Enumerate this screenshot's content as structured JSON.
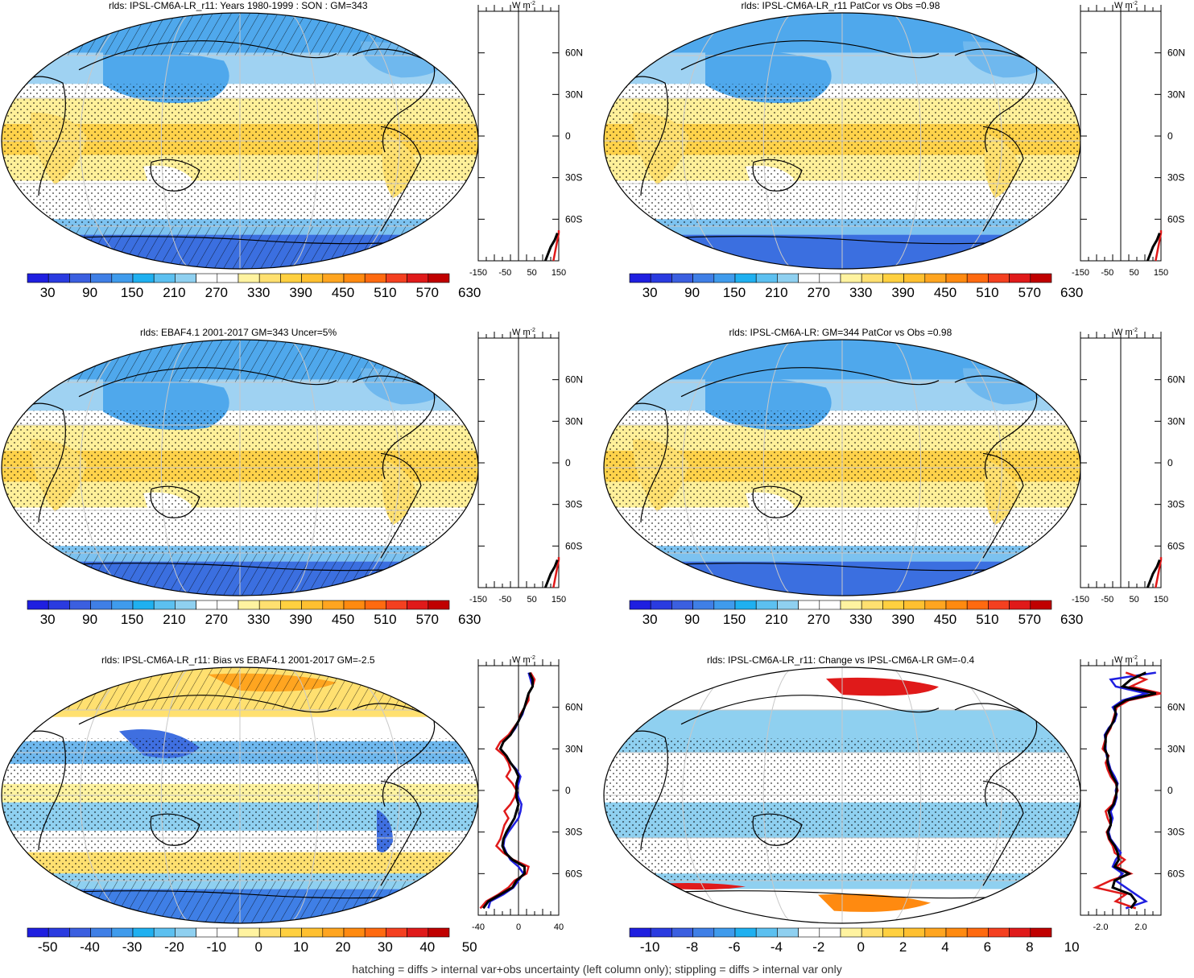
{
  "footer": "hatching = diffs > internal var+obs uncertainty (left column only); stippling = diffs > internal var only",
  "panels": [
    {
      "title": "rlds: IPSL-CM6A-LR_r11: Years 1980-1999 : SON : GM=343",
      "kind": "abs",
      "hatch": true
    },
    {
      "title": "rlds: IPSL-CM6A-LR_r11 PatCor vs Obs =0.98",
      "kind": "abs",
      "hatch": false
    },
    {
      "title": "rlds: EBAF4.1 2001-2017 GM=343 Uncer=5%",
      "kind": "abs",
      "hatch": true
    },
    {
      "title": "rlds: IPSL-CM6A-LR: GM=344 PatCor vs Obs =0.98",
      "kind": "abs",
      "hatch": false
    },
    {
      "title": "rlds: IPSL-CM6A-LR_r11: Bias vs EBAF4.1 2001-2017  GM=-2.5",
      "kind": "bias",
      "hatch": true
    },
    {
      "title": "rlds: IPSL-CM6A-LR_r11: Change vs IPSL-CM6A-LR GM=-0.4",
      "kind": "change",
      "hatch": false
    }
  ],
  "colorbars": {
    "abs": {
      "labels": [
        "30",
        "90",
        "150",
        "210",
        "270",
        "330",
        "390",
        "450",
        "510",
        "570",
        "630"
      ],
      "colors": [
        "#1f1fe0",
        "#2a3be0",
        "#3b5fe0",
        "#3f7fe6",
        "#3f9bec",
        "#1fb0f0",
        "#5cc0f0",
        "#8fd0f0",
        "#ffffff",
        "#ffffff",
        "#fff3a0",
        "#ffe070",
        "#ffd040",
        "#ffc030",
        "#ffa520",
        "#ff8a10",
        "#ff6a10",
        "#f44020",
        "#e01a1a",
        "#c00000"
      ]
    },
    "bias": {
      "labels": [
        "-50",
        "-40",
        "-30",
        "-20",
        "-10",
        "0",
        "10",
        "20",
        "30",
        "40",
        "50"
      ],
      "colors": [
        "#1f1fe0",
        "#2a3be0",
        "#3b5fe0",
        "#3f7fe6",
        "#3f9bec",
        "#1fb0f0",
        "#5cc0f0",
        "#8fd0f0",
        "#ffffff",
        "#ffffff",
        "#fff3a0",
        "#ffe070",
        "#ffd040",
        "#ffc030",
        "#ffa520",
        "#ff8a10",
        "#ff6a10",
        "#f44020",
        "#e01a1a",
        "#c00000"
      ]
    },
    "change": {
      "labels": [
        "-10",
        "-8",
        "-6",
        "-4",
        "-2",
        "0",
        "2",
        "4",
        "6",
        "8",
        "10"
      ],
      "colors": [
        "#1f1fe0",
        "#2a3be0",
        "#3b5fe0",
        "#3f7fe6",
        "#3f9bec",
        "#1fb0f0",
        "#5cc0f0",
        "#8fd0f0",
        "#ffffff",
        "#ffffff",
        "#fff3a0",
        "#ffe070",
        "#ffd040",
        "#ffc030",
        "#ffa520",
        "#ff8a10",
        "#ff6a10",
        "#f44020",
        "#e01a1a",
        "#c00000"
      ]
    }
  },
  "zonal_panels": [
    {
      "unit": "W m-2",
      "unit_base": "W m",
      "unit_sup": "-2",
      "xticks": [
        "-150",
        "-50",
        "50",
        "150"
      ],
      "xlim": [
        -150,
        150
      ]
    },
    {
      "unit": "W m-2",
      "unit_base": "W m",
      "unit_sup": "-2",
      "xticks": [
        "-150",
        "-50",
        "50",
        "150"
      ],
      "xlim": [
        -150,
        150
      ]
    },
    {
      "unit": "W m-2",
      "unit_base": "W m",
      "unit_sup": "-2",
      "xticks": [
        "-150",
        "-50",
        "50",
        "150"
      ],
      "xlim": [
        -150,
        150
      ]
    },
    {
      "unit": "W m-2",
      "unit_base": "W m",
      "unit_sup": "-2",
      "xticks": [
        "-150",
        "-50",
        "50",
        "150"
      ],
      "xlim": [
        -150,
        150
      ]
    },
    {
      "unit": "W m-2",
      "unit_base": "W m",
      "unit_sup": "-2",
      "xticks": [
        "-40",
        "0",
        "40"
      ],
      "xlim": [
        -40,
        40
      ]
    },
    {
      "unit": "W m-2",
      "unit_base": "W m",
      "unit_sup": "-2",
      "xticks": [
        "-2.0",
        "2.0"
      ],
      "xlim": [
        -4,
        4
      ]
    }
  ],
  "lat_labels": [
    "60N",
    "30N",
    "0",
    "30S",
    "60S"
  ],
  "chart_data": {
    "type": "line",
    "colors": {
      "model": "#000000",
      "obs": "#e01a1a",
      "ensemble": "#1f1fe0"
    },
    "zonal_profiles": [
      {
        "series": [
          {
            "color": "red",
            "lat": [
              -90,
              -80,
              -75,
              -70,
              -68
            ],
            "values": [
              130,
              140,
              145,
              150,
              150
            ]
          },
          {
            "color": "black",
            "lat": [
              -90,
              -80,
              -75,
              -70
            ],
            "values": [
              100,
              120,
              135,
              145
            ]
          }
        ],
        "ylim": [
          -90,
          90
        ]
      },
      {
        "series": [
          {
            "color": "red",
            "lat": [
              -90,
              -80,
              -75,
              -70,
              -68
            ],
            "values": [
              130,
              140,
              145,
              150,
              150
            ]
          },
          {
            "color": "black",
            "lat": [
              -90,
              -80,
              -75,
              -70
            ],
            "values": [
              100,
              120,
              135,
              145
            ]
          }
        ],
        "ylim": [
          -90,
          90
        ]
      },
      {
        "series": [
          {
            "color": "red",
            "lat": [
              -90,
              -80,
              -75,
              -70,
              -68
            ],
            "values": [
              130,
              140,
              145,
              150,
              150
            ]
          },
          {
            "color": "black",
            "lat": [
              -90,
              -80,
              -75,
              -70
            ],
            "values": [
              100,
              120,
              135,
              145
            ]
          }
        ],
        "ylim": [
          -90,
          90
        ]
      },
      {
        "series": [
          {
            "color": "red",
            "lat": [
              -90,
              -80,
              -75,
              -70,
              -68
            ],
            "values": [
              130,
              140,
              145,
              150,
              150
            ]
          },
          {
            "color": "black",
            "lat": [
              -90,
              -80,
              -75,
              -70
            ],
            "values": [
              100,
              120,
              135,
              145
            ]
          }
        ],
        "ylim": [
          -90,
          90
        ]
      },
      {
        "series": [
          {
            "color": "blue",
            "lat": [
              -85,
              -80,
              -75,
              -70,
              -65,
              -60,
              -55,
              -50,
              -45,
              -40,
              -35,
              -30,
              -25,
              -20,
              -15,
              -10,
              -5,
              0,
              5,
              10,
              15,
              20,
              25,
              30,
              35,
              40,
              45,
              50,
              55,
              60,
              65,
              70,
              75,
              80,
              85
            ],
            "values": [
              -30,
              -28,
              -15,
              -5,
              0,
              5,
              0,
              -8,
              -12,
              -15,
              -14,
              -10,
              -5,
              0,
              2,
              3,
              0,
              -2,
              0,
              2,
              -2,
              -8,
              -12,
              -18,
              -15,
              -8,
              -3,
              0,
              4,
              6,
              8,
              10,
              14,
              12,
              10
            ]
          },
          {
            "color": "red",
            "lat": [
              -85,
              -80,
              -75,
              -70,
              -65,
              -60,
              -55,
              -50,
              -45,
              -40,
              -35,
              -30,
              -25,
              -20,
              -15,
              -10,
              -5,
              0,
              5,
              10,
              15,
              20,
              25,
              30,
              35,
              40,
              45,
              50,
              55,
              60,
              65,
              70,
              75,
              80,
              85
            ],
            "values": [
              -38,
              -32,
              -20,
              -10,
              -4,
              8,
              10,
              -5,
              -15,
              -22,
              -18,
              -16,
              -14,
              -10,
              -14,
              -8,
              -4,
              -2,
              -6,
              -12,
              -8,
              -10,
              -14,
              -22,
              -18,
              -10,
              -5,
              0,
              2,
              6,
              10,
              10,
              14,
              16,
              12
            ]
          },
          {
            "color": "black",
            "lat": [
              -85,
              -80,
              -75,
              -70,
              -65,
              -60,
              -55,
              -50,
              -45,
              -40,
              -35,
              -30,
              -25,
              -20,
              -15,
              -10,
              -5,
              0,
              5,
              10,
              15,
              20,
              25,
              30,
              35,
              40,
              45,
              50,
              55,
              60,
              65,
              70,
              75,
              80,
              85
            ],
            "values": [
              -35,
              -30,
              -18,
              -6,
              -2,
              6,
              6,
              -6,
              -13,
              -16,
              -15,
              -12,
              -8,
              -4,
              -2,
              0,
              -2,
              -2,
              -2,
              0,
              -3,
              -8,
              -12,
              -18,
              -15,
              -8,
              -4,
              0,
              3,
              6,
              8,
              10,
              14,
              14,
              11
            ]
          }
        ],
        "ylim": [
          -90,
          90
        ]
      },
      {
        "series": [
          {
            "color": "blue",
            "lat": [
              -85,
              -80,
              -75,
              -70,
              -65,
              -60,
              -55,
              -50,
              -45,
              -40,
              -35,
              -30,
              -25,
              -20,
              -15,
              -10,
              -5,
              0,
              5,
              10,
              15,
              20,
              25,
              30,
              35,
              40,
              45,
              50,
              55,
              60,
              65,
              70,
              75,
              80,
              85
            ],
            "values": [
              0.5,
              2.5,
              1.5,
              0.5,
              -0.5,
              0.2,
              -0.8,
              -0.5,
              0.0,
              -0.5,
              -1.0,
              -1.2,
              -1.0,
              -0.8,
              -1.0,
              -0.6,
              -0.4,
              -0.5,
              -0.3,
              -0.6,
              -1.0,
              -1.2,
              -1.4,
              -1.5,
              -1.5,
              -1.6,
              -1.2,
              -0.6,
              -0.4,
              -0.8,
              0.2,
              2.5,
              -0.5,
              -1.0,
              3.5
            ]
          },
          {
            "color": "red",
            "lat": [
              -85,
              -80,
              -75,
              -70,
              -65,
              -60,
              -55,
              -50,
              -45,
              -40,
              -35,
              -30,
              -25,
              -20,
              -15,
              -10,
              -5,
              0,
              5,
              10,
              15,
              20,
              25,
              30,
              35,
              40,
              45,
              50,
              55,
              60,
              65,
              70,
              75,
              80,
              85
            ],
            "values": [
              1.5,
              -0.5,
              0.5,
              -2.5,
              -1.0,
              1.0,
              -0.4,
              0.4,
              -0.6,
              -0.8,
              -1.2,
              -1.4,
              -1.0,
              -1.3,
              -1.5,
              -0.8,
              -0.6,
              -0.3,
              -0.5,
              -1.0,
              -1.3,
              -1.5,
              -1.2,
              -1.8,
              -1.6,
              -1.4,
              -1.0,
              -0.8,
              -0.6,
              -0.4,
              0.8,
              4.0,
              1.0,
              2.5,
              0.5
            ]
          },
          {
            "color": "black",
            "lat": [
              -85,
              -80,
              -75,
              -70,
              -65,
              -60,
              -55,
              -50,
              -45,
              -40,
              -35,
              -30,
              -25,
              -20,
              -15,
              -10,
              -5,
              0,
              5,
              10,
              15,
              20,
              25,
              30,
              35,
              40,
              45,
              50,
              55,
              60,
              65,
              70,
              75,
              80,
              85
            ],
            "values": [
              1.0,
              1.5,
              1.0,
              -0.8,
              -0.6,
              0.8,
              -0.6,
              -0.2,
              -0.3,
              -0.6,
              -1.1,
              -1.3,
              -1.0,
              -1.0,
              -1.2,
              -0.7,
              -0.5,
              -0.4,
              -0.4,
              -0.8,
              -1.1,
              -1.3,
              -1.3,
              -1.6,
              -1.5,
              -1.5,
              -1.1,
              -0.7,
              -0.5,
              -0.6,
              0.5,
              3.5,
              0.2,
              1.0,
              2.5
            ]
          }
        ],
        "ylim": [
          -90,
          90
        ]
      }
    ]
  }
}
